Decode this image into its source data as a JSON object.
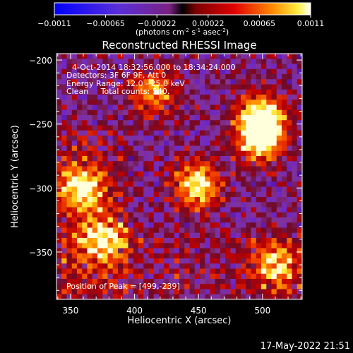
{
  "colorbar": {
    "ticks": [
      "-0.0011",
      "-0.00065",
      "-0.00022",
      "0.00022",
      "0.00065",
      "0.0011"
    ],
    "unit_label": "(photons cm",
    "unit_sup1": "-2",
    "unit_mid1": " s",
    "unit_sup2": "-1",
    "unit_mid2": " asec",
    "unit_sup3": "-2",
    "unit_end": ")",
    "range": [
      -0.0011,
      0.0011
    ]
  },
  "info": {
    "time_range": "4-Oct-2014 18:32:56.000 to 18:34:24.000",
    "detectors": "Detectors: 3F 6F 9F, Att 0",
    "energy_range": "Energy Range: 12.0 - 25.0 keV",
    "method_counts": "Clean     Total counts: 540.",
    "peak_position": "Position of Peak = [499,-239]"
  },
  "footer": {
    "date": "17-May-2022 21:51"
  },
  "colors": {
    "background": "#000000",
    "foreground": "#ffffff"
  },
  "chart_data": {
    "type": "heatmap",
    "title": "Reconstructed RHESSI Image",
    "xlabel": "Heliocentric X (arcsec)",
    "ylabel": "Heliocentric Y (arcsec)",
    "xlim": [
      339,
      531
    ],
    "ylim": [
      -387,
      -195
    ],
    "xticks": [
      350,
      400,
      450,
      500
    ],
    "xtick_labels": [
      "350",
      "400",
      "450",
      "500"
    ],
    "yticks": [
      -200,
      -250,
      -300,
      -350
    ],
    "ytick_labels": [
      "-200",
      "-250",
      "-300",
      "-350"
    ],
    "peak": [
      499,
      -239
    ],
    "bright_sources": [
      {
        "x": 449,
        "y": -298,
        "level": 0.95
      },
      {
        "x": 500,
        "y": -245,
        "level": 1.0
      },
      {
        "x": 498,
        "y": -262,
        "level": 0.9
      },
      {
        "x": 358,
        "y": -300,
        "level": 0.85
      },
      {
        "x": 415,
        "y": -225,
        "level": 0.7
      },
      {
        "x": 375,
        "y": -340,
        "level": 0.75
      },
      {
        "x": 510,
        "y": -360,
        "level": 0.7
      }
    ]
  }
}
